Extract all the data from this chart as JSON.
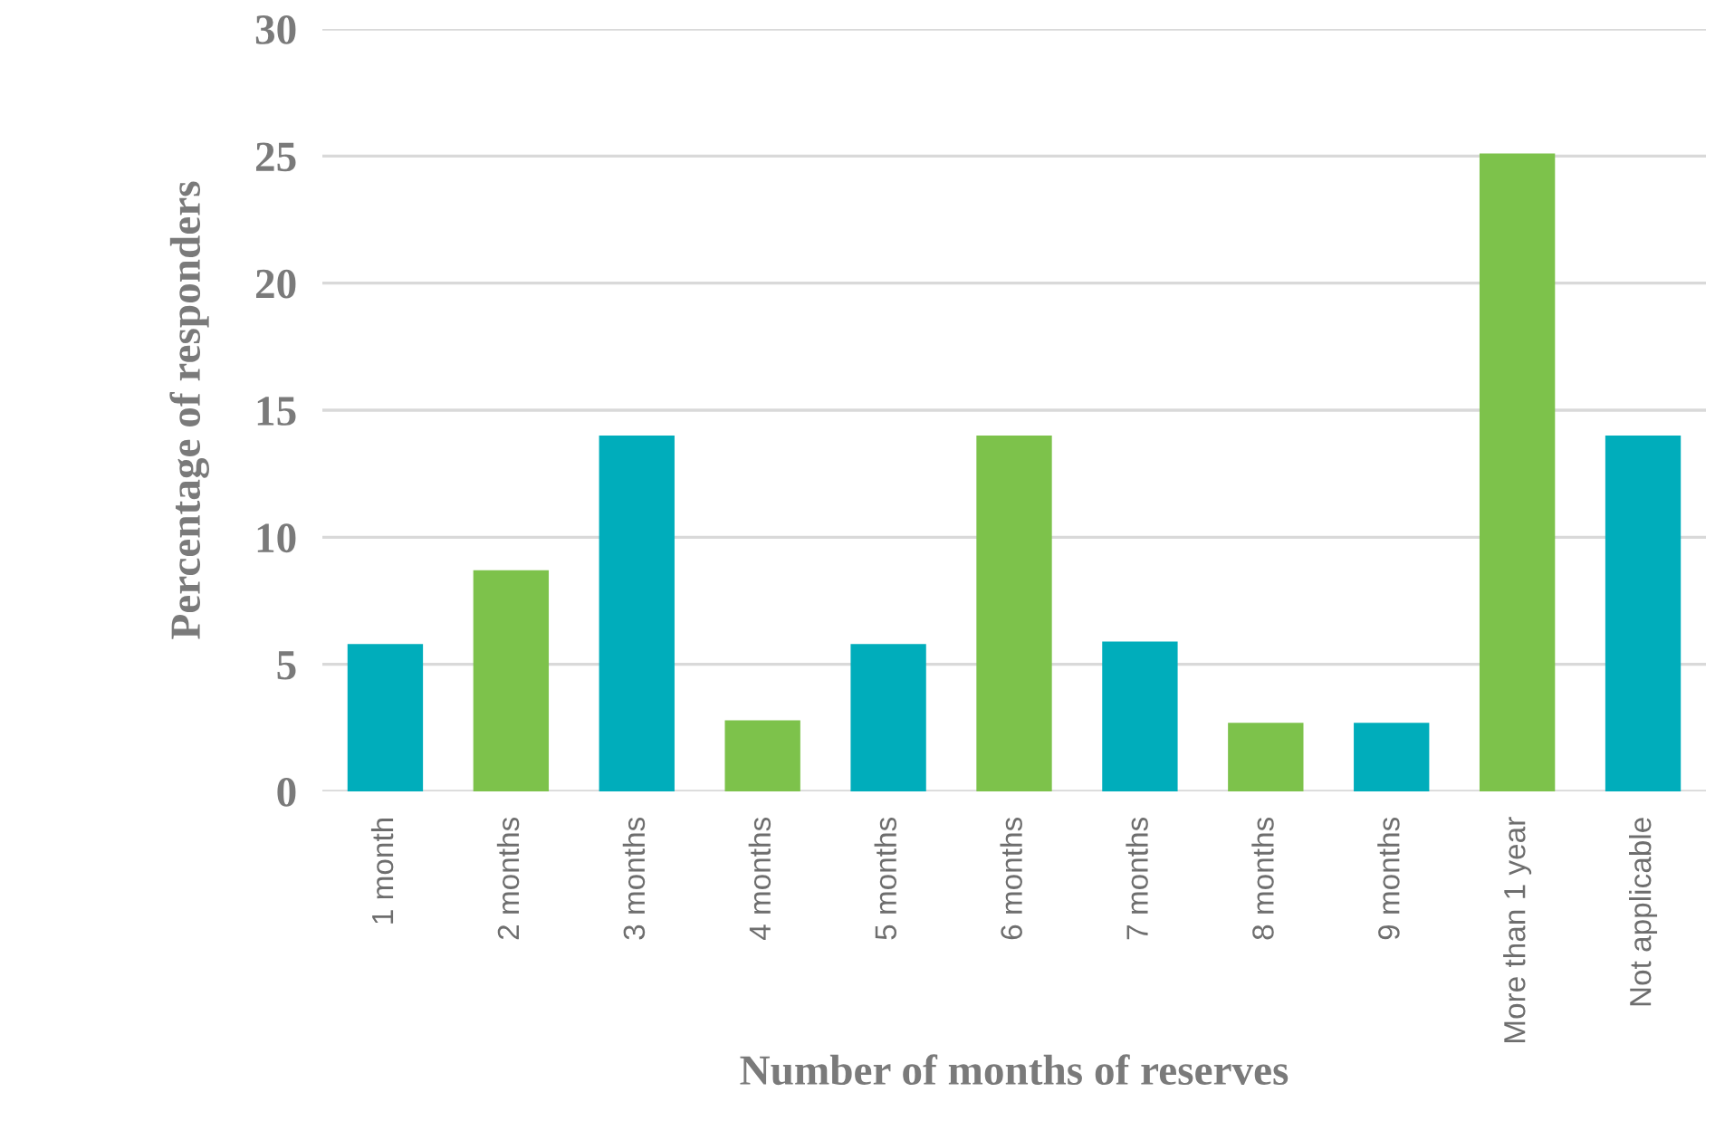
{
  "chart_data": {
    "type": "bar",
    "xlabel": "Number of months of reserves",
    "ylabel": "Percentage of responders",
    "categories": [
      "1 month",
      "2 months",
      "3 months",
      "4 months",
      "5 months",
      "6 months",
      "7 months",
      "8 months",
      "9 months",
      "More than 1 year",
      "Not applicable"
    ],
    "values": [
      5.8,
      8.7,
      14,
      2.8,
      5.8,
      14,
      5.9,
      2.7,
      2.7,
      25.1,
      14
    ],
    "colors": [
      "#00adbb",
      "#7dc24b",
      "#00adbb",
      "#7dc24b",
      "#00adbb",
      "#7dc24b",
      "#00adbb",
      "#7dc24b",
      "#00adbb",
      "#7dc24b",
      "#00adbb"
    ],
    "ylim": [
      0,
      30
    ],
    "yticks": [
      0,
      5,
      10,
      15,
      20,
      25,
      30
    ],
    "grid": "y",
    "legend": false
  }
}
